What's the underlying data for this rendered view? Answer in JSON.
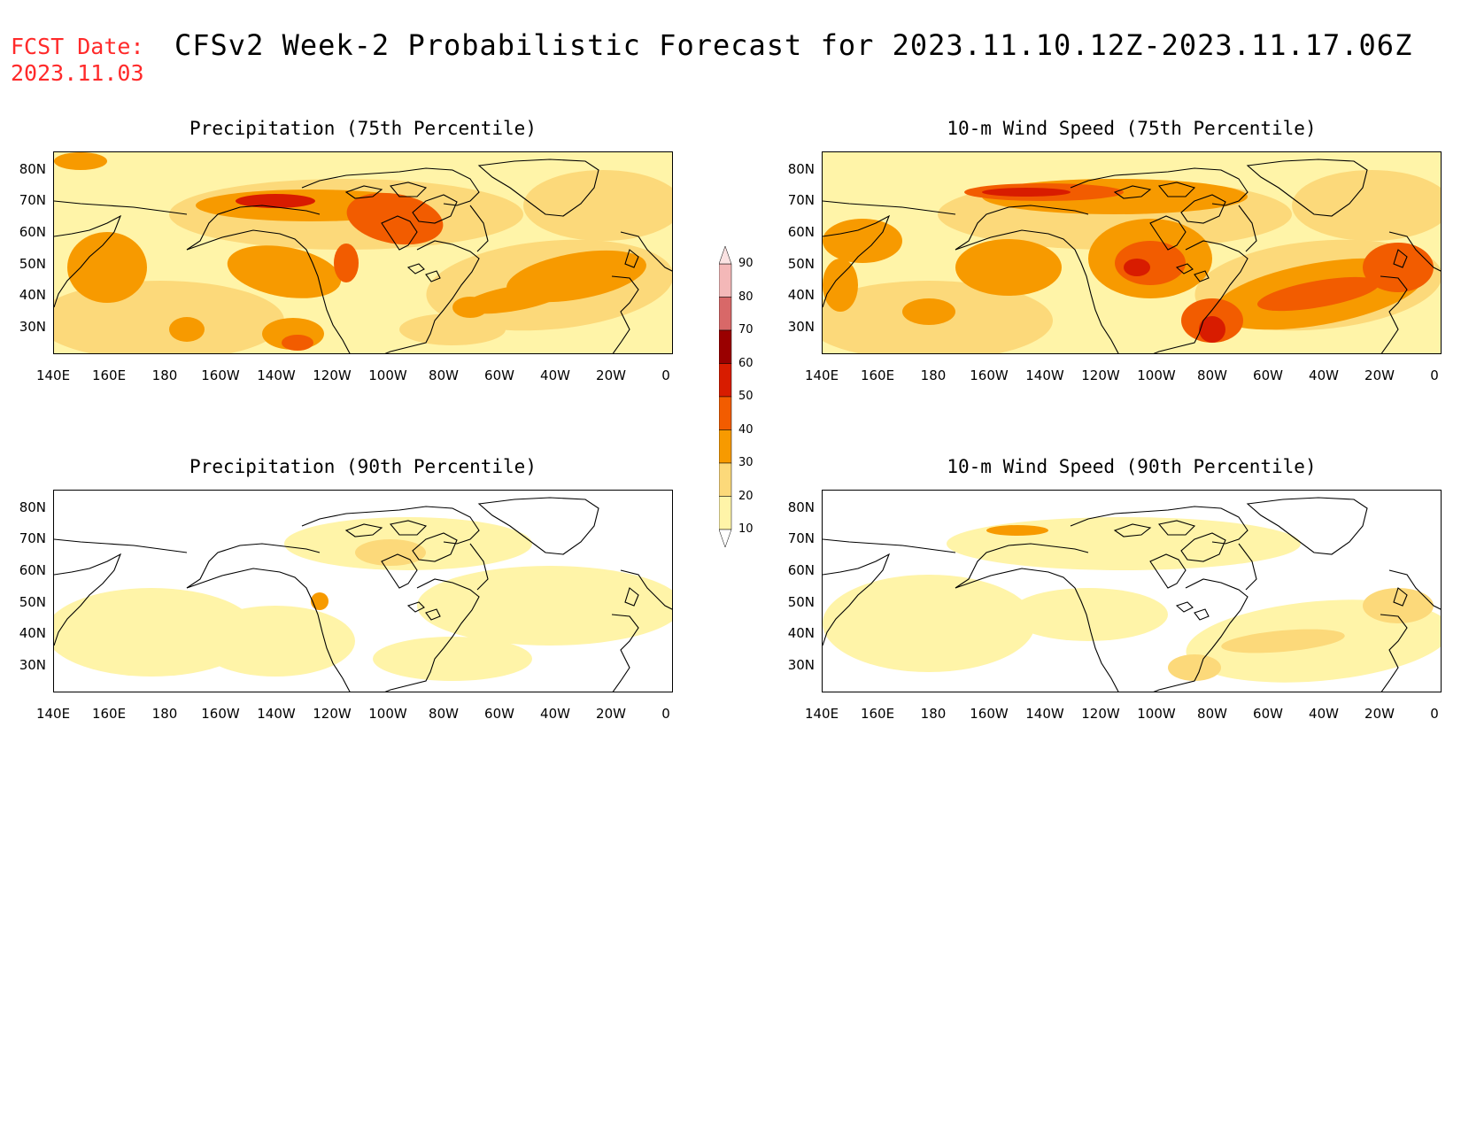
{
  "header": {
    "fcst_label": "FCST Date:",
    "fcst_date": "2023.11.03",
    "title": "CFSv2 Week-2 Probabilistic Forecast for 2023.11.10.12Z-2023.11.17.06Z"
  },
  "axes": {
    "lat_labels": [
      "80N",
      "70N",
      "60N",
      "50N",
      "40N",
      "30N"
    ],
    "lon_labels": [
      "140E",
      "160E",
      "180",
      "160W",
      "140W",
      "120W",
      "100W",
      "80W",
      "60W",
      "40W",
      "20W",
      "0"
    ]
  },
  "panels": [
    {
      "title": "Precipitation (75th Percentile)",
      "level": "high",
      "hotspot": "precip"
    },
    {
      "title": "10-m Wind Speed (75th Percentile)",
      "level": "high",
      "hotspot": "wind"
    },
    {
      "title": "Precipitation (90th Percentile)",
      "level": "low",
      "hotspot": "precip"
    },
    {
      "title": "10-m Wind Speed (90th Percentile)",
      "level": "low",
      "hotspot": "wind"
    }
  ],
  "colorbar": {
    "labels": [
      "90",
      "80",
      "70",
      "60",
      "50",
      "40",
      "30",
      "20",
      "10"
    ],
    "colors": [
      "#f4b8b8",
      "#d86868",
      "#9a0000",
      "#d81c00",
      "#f25c00",
      "#f79a00",
      "#fcd97a",
      "#fff4a8"
    ]
  }
}
